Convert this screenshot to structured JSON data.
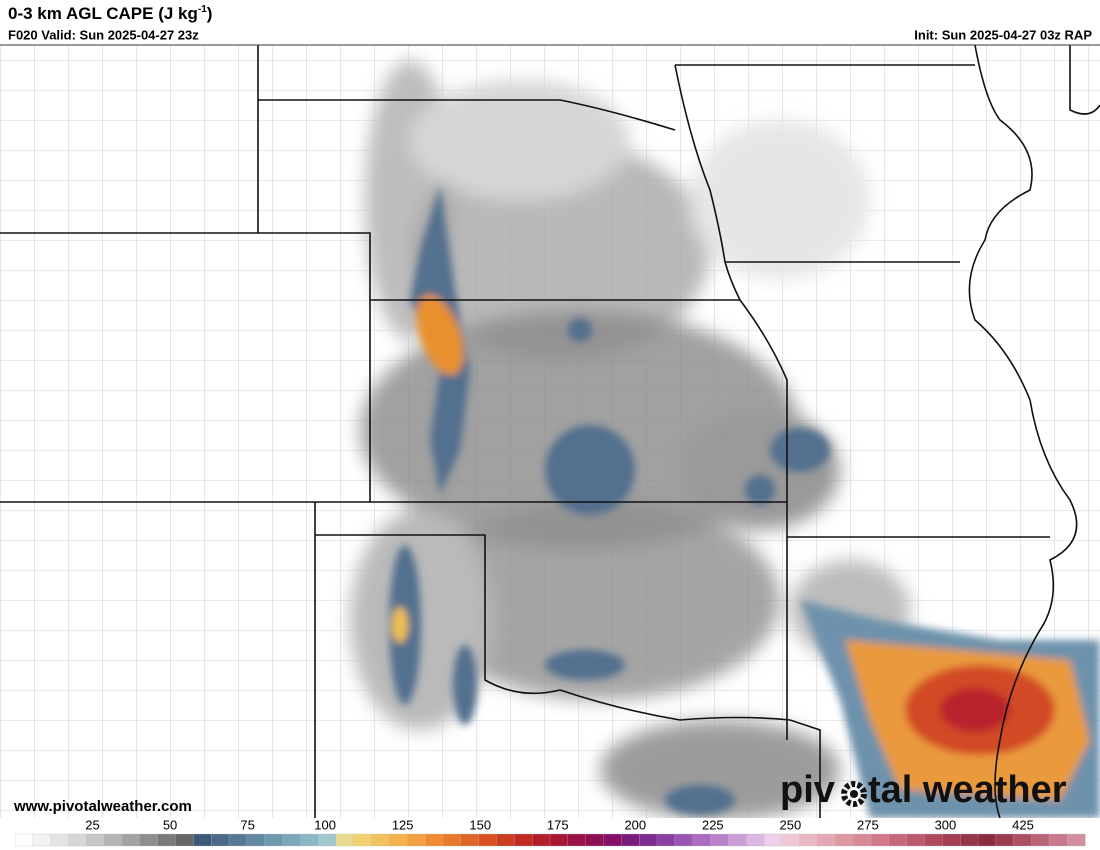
{
  "header": {
    "title": {
      "text": "0-3 km AGL CAPE (J kg",
      "superscript": "-1",
      "close": ")"
    },
    "valid": "F020 Valid: Sun 2025-04-27 23z",
    "init": "Init: Sun 2025-04-27 03z RAP"
  },
  "footer": {
    "site": "www.pivotalweather.com",
    "logo": {
      "before": "piv",
      "after": "tal weather"
    }
  },
  "colorbar": {
    "labels": [
      25,
      50,
      75,
      100,
      125,
      150,
      175,
      200,
      225,
      250,
      275,
      300,
      425
    ],
    "colors": [
      "#ffffff",
      "#f2f2f2",
      "#e4e4e4",
      "#d6d6d6",
      "#c6c6c6",
      "#b4b4b4",
      "#a2a2a2",
      "#8e8e8e",
      "#7a7a7a",
      "#666666",
      "#3e5a78",
      "#4a6a88",
      "#567a96",
      "#6289a2",
      "#6f98ae",
      "#7ea8ba",
      "#8db7c6",
      "#a0c6d0",
      "#e9d890",
      "#f0d070",
      "#f3c25c",
      "#f4b24c",
      "#f2a040",
      "#ee8c36",
      "#e8782e",
      "#e06428",
      "#d65024",
      "#cc3e22",
      "#c02c24",
      "#b41e2a",
      "#a81636",
      "#9c1244",
      "#900e52",
      "#84106a",
      "#7c1a80",
      "#7e2c92",
      "#8a40a2",
      "#9a56b2",
      "#aa6cc0",
      "#ba84cc",
      "#cc9ed8",
      "#dcb8e2",
      "#ecd0e8",
      "#f0c8d4",
      "#eab8c4",
      "#e4a8b4",
      "#de98a4",
      "#d88896",
      "#d07888",
      "#c8687a",
      "#be586c",
      "#b24a5e",
      "#a43e52",
      "#963448",
      "#8a2c40",
      "#9c3c52",
      "#ac5064",
      "#ba6478",
      "#c87a8c",
      "#d490a0"
    ]
  }
}
